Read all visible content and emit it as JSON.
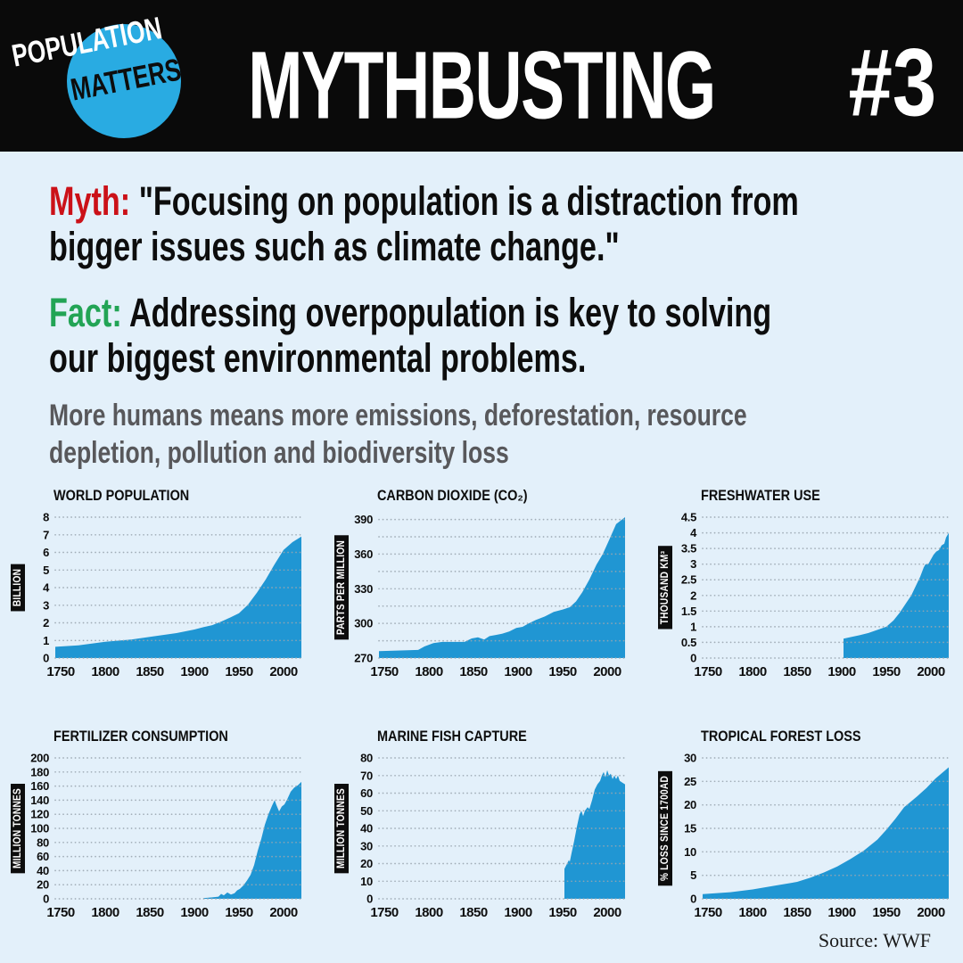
{
  "page": {
    "background": "#e3f0fa"
  },
  "header": {
    "bg": "#0a0a0a",
    "title": "MYTHBUSTING",
    "number": "#3",
    "logo": {
      "line1": "POPULATION",
      "line2": "MATTERS",
      "circle_color": "#29abe2"
    }
  },
  "myth": {
    "label": "Myth:",
    "label_color": "#cb1118",
    "line1": " \"Focusing on population is a distraction from",
    "line2": "bigger issues such as climate change.\""
  },
  "fact": {
    "label": "Fact:",
    "label_color": "#22a455",
    "line1": " Addressing overpopulation is key to solving",
    "line2": "our biggest environmental problems."
  },
  "subtitle": {
    "line1": "More humans means more emissions, deforestation, resource",
    "line2": "depletion, pollution and biodiversity loss"
  },
  "source": "Source: WWF",
  "chart_style": {
    "area_color": "#2096d3",
    "grid_color": "#9aa6b0",
    "ylabel_bg": "#0d0d0d",
    "ylabel_fg": "#ffffff"
  },
  "chart_data": [
    {
      "type": "area",
      "title": "WORLD POPULATION",
      "ylabel": "BILLION",
      "xlabel": "",
      "xmin": 1744,
      "xmax": 2020,
      "xticks": [
        1750,
        1800,
        1850,
        1900,
        1950,
        2000
      ],
      "ymin": 0,
      "ymax": 8,
      "yticks": [
        0,
        1,
        2,
        3,
        4,
        5,
        6,
        7,
        8
      ],
      "ytick_labels": [
        "0",
        "1",
        "2",
        "3",
        "4",
        "5",
        "6",
        "7",
        "8"
      ],
      "minor_yticks": [],
      "points": [
        [
          1744,
          0.64
        ],
        [
          1770,
          0.72
        ],
        [
          1800,
          0.92
        ],
        [
          1830,
          1.06
        ],
        [
          1850,
          1.2
        ],
        [
          1880,
          1.42
        ],
        [
          1900,
          1.62
        ],
        [
          1910,
          1.75
        ],
        [
          1920,
          1.87
        ],
        [
          1930,
          2.07
        ],
        [
          1940,
          2.3
        ],
        [
          1950,
          2.54
        ],
        [
          1960,
          3.03
        ],
        [
          1970,
          3.7
        ],
        [
          1980,
          4.46
        ],
        [
          1990,
          5.33
        ],
        [
          2000,
          6.14
        ],
        [
          2010,
          6.58
        ],
        [
          2020,
          6.9
        ]
      ]
    },
    {
      "type": "area",
      "title": "CARBON DIOXIDE (CO₂)",
      "ylabel": "PARTS PER MILLION",
      "xlabel": "",
      "xmin": 1744,
      "xmax": 2020,
      "xticks": [
        1750,
        1800,
        1850,
        1900,
        1950,
        2000
      ],
      "ymin": 270,
      "ymax": 392,
      "yticks": [
        270,
        300,
        330,
        360,
        390
      ],
      "ytick_labels": [
        "270",
        "300",
        "330",
        "360",
        "390"
      ],
      "minor_yticks": [
        285,
        315,
        345,
        375
      ],
      "points": [
        [
          1744,
          276
        ],
        [
          1788,
          277
        ],
        [
          1795,
          280
        ],
        [
          1805,
          283
        ],
        [
          1815,
          284
        ],
        [
          1840,
          284
        ],
        [
          1848,
          287
        ],
        [
          1855,
          288
        ],
        [
          1862,
          286
        ],
        [
          1868,
          289
        ],
        [
          1875,
          290
        ],
        [
          1882,
          291
        ],
        [
          1890,
          293
        ],
        [
          1898,
          296
        ],
        [
          1905,
          297
        ],
        [
          1912,
          300
        ],
        [
          1920,
          303
        ],
        [
          1930,
          306
        ],
        [
          1940,
          310
        ],
        [
          1950,
          312
        ],
        [
          1958,
          314
        ],
        [
          1965,
          319
        ],
        [
          1972,
          327
        ],
        [
          1980,
          338
        ],
        [
          1988,
          351
        ],
        [
          1995,
          360
        ],
        [
          2002,
          372
        ],
        [
          2010,
          386
        ],
        [
          2020,
          392
        ]
      ]
    },
    {
      "type": "area",
      "title": "FRESHWATER USE",
      "ylabel": "THOUSAND KM³",
      "xlabel": "",
      "xmin": 1744,
      "xmax": 2020,
      "xticks": [
        1750,
        1800,
        1850,
        1900,
        1950,
        2000
      ],
      "ymin": 0,
      "ymax": 4.5,
      "yticks": [
        0,
        0.5,
        1,
        1.5,
        2,
        2.5,
        3,
        3.5,
        4,
        4.5
      ],
      "ytick_labels": [
        "0",
        "0.5",
        "1",
        "1.5",
        "2",
        "2.5",
        "3",
        "3.5",
        "4",
        "4.5"
      ],
      "minor_yticks": [],
      "points": [
        [
          1902,
          0.62
        ],
        [
          1910,
          0.67
        ],
        [
          1920,
          0.73
        ],
        [
          1930,
          0.8
        ],
        [
          1940,
          0.9
        ],
        [
          1950,
          1.0
        ],
        [
          1958,
          1.2
        ],
        [
          1965,
          1.45
        ],
        [
          1972,
          1.75
        ],
        [
          1978,
          2.0
        ],
        [
          1983,
          2.3
        ],
        [
          1988,
          2.6
        ],
        [
          1992,
          2.9
        ],
        [
          1994,
          3.0
        ],
        [
          1997,
          3.0
        ],
        [
          2000,
          3.15
        ],
        [
          2003,
          3.3
        ],
        [
          2006,
          3.4
        ],
        [
          2009,
          3.45
        ],
        [
          2012,
          3.6
        ],
        [
          2015,
          3.65
        ],
        [
          2017,
          3.85
        ],
        [
          2020,
          4.0
        ]
      ]
    },
    {
      "type": "area",
      "title": "FERTILIZER CONSUMPTION",
      "ylabel": "MILLION TONNES",
      "xlabel": "",
      "xmin": 1744,
      "xmax": 2020,
      "xticks": [
        1750,
        1800,
        1850,
        1900,
        1950,
        2000
      ],
      "ymin": 0,
      "ymax": 200,
      "yticks": [
        0,
        20,
        40,
        60,
        80,
        100,
        120,
        140,
        160,
        180,
        200
      ],
      "ytick_labels": [
        "0",
        "20",
        "40",
        "60",
        "80",
        "100",
        "120",
        "140",
        "160",
        "180",
        "200"
      ],
      "minor_yticks": [],
      "points": [
        [
          1910,
          1
        ],
        [
          1920,
          2
        ],
        [
          1927,
          3
        ],
        [
          1930,
          7
        ],
        [
          1933,
          5
        ],
        [
          1937,
          9
        ],
        [
          1941,
          6
        ],
        [
          1945,
          8
        ],
        [
          1948,
          12
        ],
        [
          1951,
          14
        ],
        [
          1955,
          19
        ],
        [
          1959,
          26
        ],
        [
          1963,
          34
        ],
        [
          1967,
          48
        ],
        [
          1971,
          68
        ],
        [
          1975,
          85
        ],
        [
          1979,
          105
        ],
        [
          1983,
          120
        ],
        [
          1987,
          132
        ],
        [
          1990,
          140
        ],
        [
          1992,
          133
        ],
        [
          1995,
          124
        ],
        [
          1998,
          131
        ],
        [
          2001,
          134
        ],
        [
          2004,
          141
        ],
        [
          2008,
          152
        ],
        [
          2012,
          158
        ],
        [
          2016,
          161
        ],
        [
          2020,
          166
        ]
      ]
    },
    {
      "type": "area",
      "title": "MARINE FISH CAPTURE",
      "ylabel": "MILLION TONNES",
      "xlabel": "",
      "xmin": 1744,
      "xmax": 2020,
      "xticks": [
        1750,
        1800,
        1850,
        1900,
        1950,
        2000
      ],
      "ymin": 0,
      "ymax": 80,
      "yticks": [
        0,
        10,
        20,
        30,
        40,
        50,
        60,
        70,
        80
      ],
      "ytick_labels": [
        "0",
        "10",
        "20",
        "30",
        "40",
        "50",
        "60",
        "70",
        "80"
      ],
      "minor_yticks": [],
      "points": [
        [
          1952,
          17
        ],
        [
          1955,
          20
        ],
        [
          1957,
          22
        ],
        [
          1958,
          21
        ],
        [
          1960,
          26
        ],
        [
          1963,
          33
        ],
        [
          1966,
          41
        ],
        [
          1969,
          48
        ],
        [
          1971,
          50
        ],
        [
          1973,
          47
        ],
        [
          1975,
          50
        ],
        [
          1978,
          52
        ],
        [
          1980,
          51
        ],
        [
          1983,
          56
        ],
        [
          1986,
          62
        ],
        [
          1989,
          65
        ],
        [
          1992,
          67
        ],
        [
          1994,
          70
        ],
        [
          1996,
          72
        ],
        [
          1998,
          69
        ],
        [
          2000,
          73
        ],
        [
          2002,
          70
        ],
        [
          2004,
          71
        ],
        [
          2006,
          68
        ],
        [
          2008,
          70
        ],
        [
          2010,
          68
        ],
        [
          2012,
          70
        ],
        [
          2014,
          67
        ],
        [
          2017,
          66
        ],
        [
          2020,
          65
        ]
      ]
    },
    {
      "type": "area",
      "title": "TROPICAL FOREST LOSS",
      "ylabel": "% LOSS SINCE 1700AD",
      "xlabel": "",
      "xmin": 1744,
      "xmax": 2020,
      "xticks": [
        1750,
        1800,
        1850,
        1900,
        1950,
        2000
      ],
      "ymin": 0,
      "ymax": 30,
      "yticks": [
        0,
        5,
        10,
        15,
        20,
        25,
        30
      ],
      "ytick_labels": [
        "0",
        "5",
        "10",
        "15",
        "20",
        "25",
        "30"
      ],
      "minor_yticks": [],
      "points": [
        [
          1744,
          1.0
        ],
        [
          1775,
          1.4
        ],
        [
          1800,
          2.0
        ],
        [
          1825,
          2.8
        ],
        [
          1850,
          3.6
        ],
        [
          1865,
          4.5
        ],
        [
          1880,
          5.6
        ],
        [
          1895,
          6.9
        ],
        [
          1910,
          8.5
        ],
        [
          1925,
          10.3
        ],
        [
          1940,
          12.6
        ],
        [
          1950,
          14.7
        ],
        [
          1960,
          17.0
        ],
        [
          1970,
          19.5
        ],
        [
          1975,
          20.3
        ],
        [
          1985,
          21.9
        ],
        [
          1995,
          23.6
        ],
        [
          2005,
          25.6
        ],
        [
          2020,
          28.0
        ]
      ]
    }
  ]
}
